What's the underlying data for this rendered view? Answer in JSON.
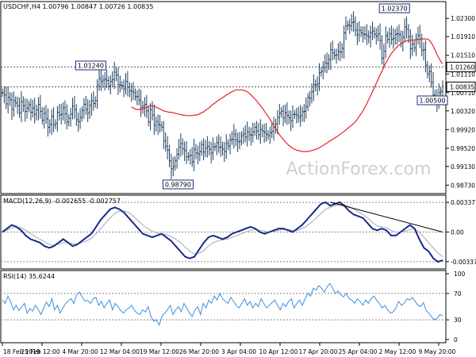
{
  "colors": {
    "bar": "#1f3f5f",
    "ma": "#e8202a",
    "macd": "#1a2a8a",
    "signal": "#b9b9c9",
    "rsi": "#3d8ee0",
    "label_box": "#1a2a8a",
    "watermark": "#cfcfcf"
  },
  "watermark": "ActionForex.com",
  "chart_data": [
    {
      "type": "candlestick",
      "title": "USDCHF,H4  1.00796 1.00847 1.00726 1.00835",
      "ylim": [
        0.9855,
        1.0266
      ],
      "y_ticks": [
        1.023,
        1.0191,
        1.0151,
        1.0111,
        1.0071,
        1.0032,
        0.9992,
        0.9952,
        0.9913,
        0.9873
      ],
      "y_tick_labels": [
        "1.02300",
        "1.01910",
        "1.01510",
        "1.01110",
        "1.00710",
        "1.00320",
        "0.99920",
        "0.99520",
        "0.99130",
        "0.98730"
      ],
      "close_series": [
        1.0071,
        1.0066,
        1.0047,
        1.0061,
        1.0056,
        1.0035,
        1.0054,
        1.0049,
        1.0043,
        1.0028,
        1.0052,
        1.0043,
        1.0031,
        1.0038,
        1.0045,
        1.0029,
        1.0038,
        1.0025,
        1.0034,
        1.0046,
        1.0031,
        1.0012,
        1.0027,
        1.0015,
        0.9997,
        1.0003,
        1.002,
        1.0002,
        1.0005,
        1.0029,
        1.0023,
        1.0025,
        1.0039,
        1.0026,
        1.0008,
        1.0016,
        1.0025,
        1.0042,
        1.0035,
        1.0013,
        1.0009,
        1.0018,
        1.0033,
        1.0046,
        1.0035,
        1.0028,
        1.0044,
        1.0054,
        1.0048,
        1.0054,
        1.0086,
        1.0101,
        1.0095,
        1.0098,
        1.01,
        1.0097,
        1.0085,
        1.0095,
        1.0099,
        1.0115,
        1.0109,
        1.0088,
        1.0087,
        1.0086,
        1.0079,
        1.0095,
        1.0083,
        1.0075,
        1.0074,
        1.0071,
        1.0063,
        1.0062,
        1.0055,
        1.0039,
        1.0042,
        1.0046,
        1.0032,
        1.0008,
        1.0035,
        1.0023,
        1.0001,
        1.0009,
        1.0003,
        1.0001,
        0.9997,
        0.9968,
        0.9956,
        0.9948,
        0.9925,
        0.9908,
        0.9913,
        0.9926,
        0.9939,
        0.9954,
        0.9962,
        0.9951,
        0.9947,
        0.9934,
        0.9935,
        0.9937,
        0.9923,
        0.995,
        0.9942,
        0.994,
        0.9945,
        0.996,
        0.9944,
        0.9952,
        0.9956,
        0.995,
        0.9942,
        0.9955,
        0.9955,
        0.9964,
        0.9954,
        0.9955,
        0.995,
        0.9945,
        0.9962,
        0.9957,
        0.997,
        0.9971,
        0.9982,
        0.997,
        0.9966,
        0.9967,
        0.9979,
        0.9983,
        0.9976,
        0.9987,
        0.9981,
        0.998,
        0.9987,
        0.9997,
        0.9989,
        0.9981,
        0.9992,
        0.9989,
        0.9986,
        0.9982,
        0.9979,
        0.9985,
        0.9988,
        0.9997,
        1.0004,
        1.0018,
        1.0027,
        1.0031,
        1.0017,
        1.0028,
        1.0022,
        1.0017,
        1.0011,
        1.0024,
        1.0025,
        1.0023,
        1.0018,
        1.0022,
        1.003,
        1.0031,
        1.0041,
        1.0061,
        1.0059,
        1.0073,
        1.0088,
        1.0087,
        1.009,
        1.0114,
        1.0117,
        1.0125,
        1.0135,
        1.0133,
        1.0142,
        1.0163,
        1.0156,
        1.0151,
        1.0152,
        1.0159,
        1.0158,
        1.0166,
        1.0199,
        1.0214,
        1.0216,
        1.0214,
        1.0221,
        1.0223,
        1.0205,
        1.0195,
        1.0204,
        1.0199,
        1.0196,
        1.0196,
        1.0193,
        1.019,
        1.0199,
        1.0203,
        1.0196,
        1.0192,
        1.0197,
        1.0183,
        1.0145,
        1.016,
        1.0193,
        1.0185,
        1.0197,
        1.0185,
        1.0187,
        1.0196,
        1.0197,
        1.0195,
        1.0177,
        1.019,
        1.0212,
        1.0207,
        1.0191,
        1.0165,
        1.0175,
        1.0167,
        1.0185,
        1.0194,
        1.0186,
        1.0162,
        1.0163,
        1.013,
        1.0111,
        1.0116,
        1.0093,
        1.0066,
        1.0063,
        1.0052,
        1.0071,
        1.0074,
        1.0084
      ],
      "moving_average": [
        1.004,
        1.0038,
        1.0036,
        1.0035,
        1.0035,
        1.0035,
        1.0036,
        1.0038,
        1.004,
        1.0042,
        1.0043,
        1.0043,
        1.0042,
        1.004,
        1.0038,
        1.0036,
        1.0034,
        1.0032,
        1.0031,
        1.003,
        1.0029,
        1.0029,
        1.0028,
        1.0027,
        1.0026,
        1.0025,
        1.0024,
        1.0023,
        1.0023,
        1.0022,
        1.0022,
        1.0022,
        1.0022,
        1.0023,
        1.0023,
        1.0024,
        1.0026,
        1.0028,
        1.003,
        1.0033,
        1.0036,
        1.0039,
        1.0043,
        1.0046,
        1.0049,
        1.0052,
        1.0055,
        1.0058,
        1.006,
        1.0063,
        1.0066,
        1.0068,
        1.0071,
        1.0073,
        1.0075,
        1.0077,
        1.0077,
        1.0077,
        1.0077,
        1.0076,
        1.0075,
        1.0073,
        1.007,
        1.0066,
        1.0062,
        1.0058,
        1.0053,
        1.0048,
        1.0043,
        1.0038,
        1.0032,
        1.0026,
        1.002,
        1.0014,
        1.0007,
        1.0001,
        0.9994,
        0.9988,
        0.9981,
        0.9976,
        0.9971,
        0.9966,
        0.9962,
        0.9958,
        0.9955,
        0.9952,
        0.995,
        0.9948,
        0.9947,
        0.9946,
        0.9945,
        0.9945,
        0.9945,
        0.9945,
        0.9946,
        0.9947,
        0.9948,
        0.995,
        0.9951,
        0.9953,
        0.9956,
        0.9958,
        0.9961,
        0.9963,
        0.9966,
        0.9969,
        0.9971,
        0.9974,
        0.9976,
        0.9979,
        0.9982,
        0.9985,
        0.9988,
        0.9991,
        0.9995,
        0.9998,
        1.0001,
        1.0005,
        1.0009,
        1.0014,
        1.002,
        1.0026,
        1.0032,
        1.004,
        1.0047,
        1.0056,
        1.0064,
        1.0073,
        1.0082,
        1.0091,
        1.01,
        1.0109,
        1.0117,
        1.0126,
        1.0134,
        1.0141,
        1.0149,
        1.0155,
        1.016,
        1.0165,
        1.0169,
        1.0173,
        1.0176,
        1.0178,
        1.018,
        1.0182,
        1.0183,
        1.0183,
        1.0184,
        1.0184,
        1.0185,
        1.0185,
        1.0185,
        1.0186,
        1.0186,
        1.0186,
        1.0186,
        1.0183,
        1.0178,
        1.0171,
        1.0162,
        1.0153,
        1.0145,
        1.0138,
        1.0133
      ],
      "annotations": [
        "1.02370",
        "1.01240",
        "0.98790",
        "1.00500"
      ],
      "level_labels": [
        "1.01260",
        "1.00835"
      ],
      "levels": [
        1.0126,
        1.00835
      ]
    },
    {
      "type": "line",
      "title": "MACD(12,26,9) -0.002655 -0.002757",
      "ylim": [
        -0.0042,
        0.0042
      ],
      "y_ticks": [
        0.003377,
        0.0,
        -0.003373
      ],
      "y_tick_labels": [
        "0.003377",
        "0.00",
        "-0.003373"
      ],
      "macd": [
        0.0,
        0.0004,
        0.0008,
        0.0006,
        0.0002,
        -0.0004,
        -0.0008,
        -0.001,
        -0.0012,
        -0.0016,
        -0.0018,
        -0.0016,
        -0.0012,
        -0.0008,
        -0.0012,
        -0.0016,
        -0.0014,
        -0.001,
        -0.0006,
        -0.0002,
        0.0006,
        0.0014,
        0.002,
        0.0026,
        0.0028,
        0.0026,
        0.0022,
        0.0016,
        0.001,
        0.0004,
        -0.0002,
        -0.0004,
        -0.0006,
        -0.0004,
        -0.0002,
        -0.0006,
        -0.001,
        -0.0016,
        -0.0022,
        -0.0028,
        -0.003,
        -0.0028,
        -0.002,
        -0.0012,
        -0.0006,
        -0.0004,
        -0.0006,
        -0.0008,
        -0.0006,
        -0.0002,
        0.0,
        0.0002,
        0.0004,
        0.0006,
        0.0004,
        0.0,
        -0.0002,
        0.0,
        0.0002,
        0.0004,
        0.0004,
        0.0002,
        0.0,
        0.0004,
        0.0008,
        0.0014,
        0.002,
        0.0026,
        0.0032,
        0.0034,
        0.003,
        0.0032,
        0.0034,
        0.003,
        0.0024,
        0.002,
        0.0018,
        0.0016,
        0.001,
        0.0004,
        0.0002,
        0.0004,
        0.0002,
        -0.0004,
        -0.0004,
        0.0,
        0.0004,
        0.0008,
        0.0004,
        -0.0008,
        -0.0018,
        -0.0022,
        -0.003,
        -0.0034,
        -0.0032
      ],
      "signal_line": [
        0.0,
        0.0002,
        0.0005,
        0.0006,
        0.0005,
        0.0002,
        -0.0002,
        -0.0005,
        -0.0008,
        -0.0011,
        -0.0014,
        -0.0015,
        -0.0014,
        -0.0012,
        -0.0012,
        -0.0013,
        -0.0014,
        -0.0012,
        -0.001,
        -0.0007,
        -0.0002,
        0.0004,
        0.001,
        0.0016,
        0.0021,
        0.0024,
        0.0024,
        0.0022,
        0.0018,
        0.0013,
        0.0008,
        0.0004,
        0.0001,
        -0.0001,
        -0.0002,
        -0.0003,
        -0.0005,
        -0.0008,
        -0.0012,
        -0.0017,
        -0.0022,
        -0.0025,
        -0.0024,
        -0.0021,
        -0.0016,
        -0.0012,
        -0.001,
        -0.0009,
        -0.0008,
        -0.0006,
        -0.0004,
        -0.0002,
        0.0,
        0.0002,
        0.0003,
        0.0002,
        0.0001,
        0.0,
        0.0001,
        0.0002,
        0.0003,
        0.0003,
        0.0002,
        0.0002,
        0.0004,
        0.0007,
        0.0011,
        0.0016,
        0.0021,
        0.0026,
        0.0028,
        0.003,
        0.0031,
        0.0031,
        0.0029,
        0.0026,
        0.0023,
        0.002,
        0.0016,
        0.0011,
        0.0007,
        0.0006,
        0.0005,
        0.0002,
        0.0,
        0.0,
        0.0001,
        0.0003,
        0.0004,
        0.0,
        -0.0006,
        -0.0012,
        -0.0018,
        -0.0024,
        -0.0028
      ],
      "trendline": [
        [
          0.0034,
          0.0
        ]
      ]
    },
    {
      "type": "line",
      "title": "RSI(14) 35.6244",
      "ylim": [
        0,
        100
      ],
      "y_ticks": [
        100,
        70,
        30,
        0
      ],
      "y_tick_labels": [
        "100",
        "70",
        "30",
        "0"
      ],
      "values": [
        60,
        55,
        66,
        58,
        45,
        52,
        44,
        49,
        55,
        40,
        47,
        43,
        52,
        46,
        38,
        48,
        57,
        50,
        62,
        45,
        52,
        40,
        48,
        55,
        59,
        62,
        55,
        68,
        72,
        65,
        58,
        60,
        55,
        62,
        64,
        52,
        58,
        48,
        55,
        60,
        45,
        55,
        50,
        44,
        40,
        45,
        48,
        52,
        44,
        40,
        38,
        45,
        42,
        50,
        35,
        28,
        30,
        22,
        35,
        40,
        45,
        52,
        38,
        45,
        50,
        42,
        55,
        48,
        40,
        35,
        45,
        50,
        38,
        55,
        48,
        60,
        55,
        66,
        60,
        70,
        62,
        58,
        55,
        64,
        58,
        52,
        48,
        55,
        62,
        52,
        58,
        48,
        55,
        50,
        62,
        55,
        48,
        52,
        56,
        60,
        52,
        45,
        55,
        50,
        58,
        62,
        48,
        55,
        60,
        52,
        62,
        70,
        66,
        78,
        75,
        82,
        78,
        72,
        80,
        85,
        78,
        70,
        74,
        68,
        65,
        70,
        62,
        60,
        55,
        62,
        58,
        52,
        60,
        55,
        62,
        66,
        60,
        55,
        48,
        52,
        45,
        40,
        42,
        48,
        58,
        52,
        55,
        62,
        60,
        64,
        58,
        52,
        50,
        56,
        44,
        40,
        34,
        30,
        32,
        38,
        36
      ]
    }
  ],
  "x_axis": {
    "tick_labels": [
      "18 Feb 2019",
      "25 Feb 12:00",
      "4 Mar 20:00",
      "12 Mar 04:00",
      "19 Mar 12:00",
      "26 Mar 20:00",
      "3 Apr 04:00",
      "10 Apr 12:00",
      "17 Apr 20:00",
      "25 Apr 04:00",
      "2 May 12:00",
      "9 May 20:00"
    ]
  }
}
